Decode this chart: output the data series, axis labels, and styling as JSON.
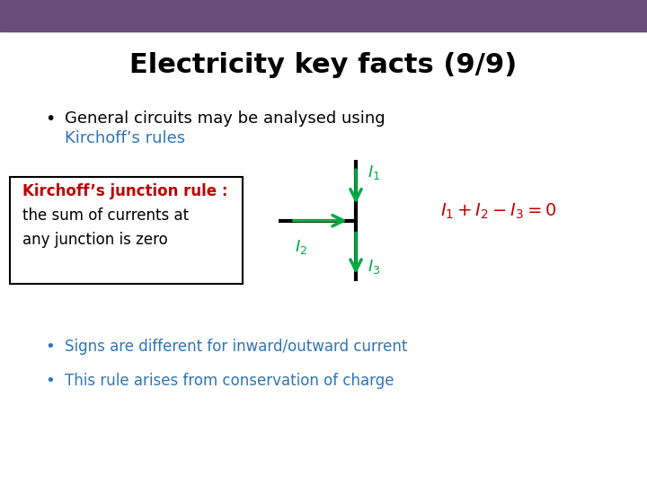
{
  "title": "Electricity key facts (9/9)",
  "title_color": "#000000",
  "title_fontsize": 22,
  "header_bar_color": "#6B4C7A",
  "background_color": "#FFFFFF",
  "bullet1_black": "General circuits may be analysed using ",
  "bullet1_blue": "Kirchoff’s rules",
  "blue_color": "#2E75B6",
  "red_color": "#C00000",
  "green_color": "#00AA44",
  "box_line1": "Kirchoff’s junction rule :",
  "box_line2": "the sum of currents at",
  "box_line3": "any junction is zero",
  "bullet2": "Signs are different for inward/outward current",
  "bullet3": "This rule arises from conservation of charge",
  "equation": "$I_1 + I_2 - I_3 = 0$",
  "label_I1": "$I_1$",
  "label_I2": "$I_2$",
  "label_I3": "$I_3$"
}
